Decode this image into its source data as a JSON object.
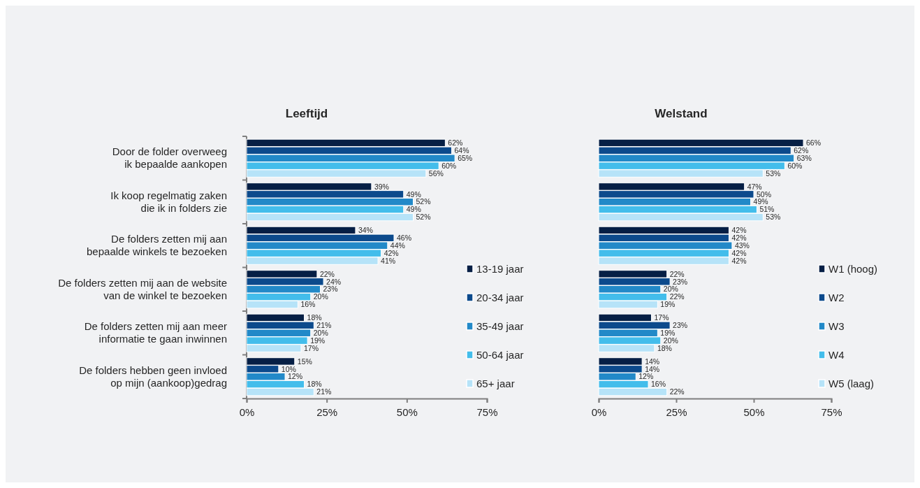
{
  "chart_data": [
    {
      "type": "bar",
      "orientation": "horizontal",
      "title": "Leeftijd",
      "categories": [
        "Door de folder overweeg\nik bepaalde aankopen",
        "Ik koop regelmatig zaken\ndie ik in folders zie",
        "De folders zetten mij aan\nbepaalde winkels te bezoeken",
        "De folders zetten mij aan de website\nvan de winkel te bezoeken",
        "De folders zetten mij aan meer\ninformatie te gaan inwinnen",
        "De folders hebben geen invloed\nop mijn (aankoop)gedrag"
      ],
      "series": [
        {
          "name": "13-19 jaar",
          "color": "#061f45",
          "values": [
            62,
            39,
            34,
            22,
            18,
            15
          ],
          "value_labels": [
            "62%",
            "39%",
            "34%",
            "22%",
            "18%",
            "15%"
          ]
        },
        {
          "name": "20-34 jaar",
          "color": "#0c4a8c",
          "values": [
            64,
            49,
            46,
            24,
            21,
            10
          ],
          "value_labels": [
            "64%",
            "49%",
            "46%",
            "24%",
            "21%",
            "10%"
          ]
        },
        {
          "name": "35-49 jaar",
          "color": "#2289c8",
          "values": [
            65,
            52,
            44,
            23,
            20,
            12
          ],
          "value_labels": [
            "65%",
            "52%",
            "44%",
            "23%",
            "20%",
            "12%"
          ]
        },
        {
          "name": "50-64 jaar",
          "color": "#43bdeb",
          "values": [
            60,
            49,
            42,
            20,
            19,
            18
          ],
          "value_labels": [
            "60%",
            "49%",
            "42%",
            "20%",
            "19%",
            "18%"
          ]
        },
        {
          "name": "65+ jaar",
          "color": "#b6e3f8",
          "values": [
            56,
            52,
            41,
            16,
            17,
            21
          ],
          "value_labels": [
            "56%",
            "52%",
            "41%",
            "16%",
            "17%",
            "21%"
          ]
        }
      ],
      "xlim": [
        0,
        75
      ],
      "xticks": [
        {
          "value": 0,
          "label": "0%"
        },
        {
          "value": 25,
          "label": "25%"
        },
        {
          "value": 50,
          "label": "50%"
        },
        {
          "value": 75,
          "label": "75%"
        }
      ],
      "legend": "right"
    },
    {
      "type": "bar",
      "orientation": "horizontal",
      "title": "Welstand",
      "categories": [
        null,
        null,
        null,
        null,
        null,
        null
      ],
      "series": [
        {
          "name": "W1 (hoog)",
          "color": "#061f45",
          "values": [
            66,
            47,
            42,
            22,
            17,
            14
          ],
          "value_labels": [
            "66%",
            "47%",
            "42%",
            "22%",
            "17%",
            "14%"
          ]
        },
        {
          "name": "W2",
          "color": "#0c4a8c",
          "values": [
            62,
            50,
            42,
            23,
            23,
            14
          ],
          "value_labels": [
            "62%",
            "50%",
            "42%",
            "23%",
            "23%",
            "14%"
          ]
        },
        {
          "name": "W3",
          "color": "#2289c8",
          "values": [
            63,
            49,
            43,
            20,
            19,
            12
          ],
          "value_labels": [
            "63%",
            "49%",
            "43%",
            "20%",
            "19%",
            "12%"
          ]
        },
        {
          "name": "W4",
          "color": "#43bdeb",
          "values": [
            60,
            51,
            42,
            22,
            20,
            16
          ],
          "value_labels": [
            "60%",
            "51%",
            "42%",
            "22%",
            "20%",
            "16%"
          ]
        },
        {
          "name": "W5 (laag)",
          "color": "#b6e3f8",
          "values": [
            53,
            53,
            42,
            19,
            18,
            22
          ],
          "value_labels": [
            "53%",
            "53%",
            "42%",
            "19%",
            "18%",
            "22%"
          ]
        }
      ],
      "xlim": [
        0,
        75
      ],
      "xticks": [
        {
          "value": 0,
          "label": "0%"
        },
        {
          "value": 25,
          "label": "25%"
        },
        {
          "value": 50,
          "label": "50%"
        },
        {
          "value": 75,
          "label": "75%"
        }
      ],
      "tick_labels": "x",
      "legend": "right"
    }
  ]
}
